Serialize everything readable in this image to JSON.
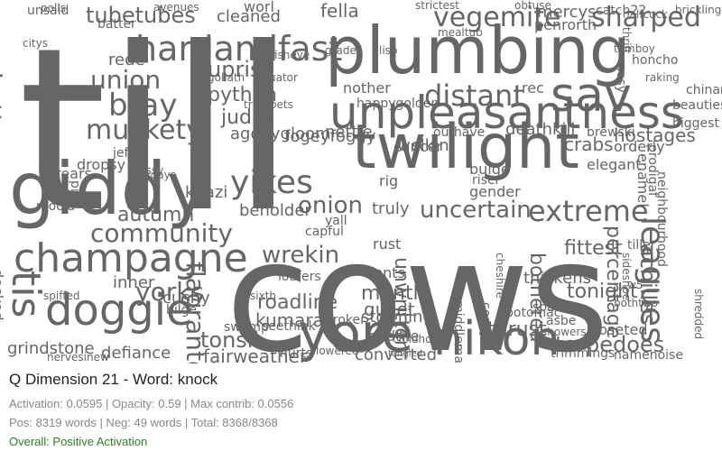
{
  "title": "Q Dimension 21 - Word: knock",
  "stats_line": "Activation: 0.0595 | Opacity: 0.59 | Max contrib: 0.0556",
  "counts_line": "Pos: 8319 words | Neg: 49 words | Total: 8368/8368",
  "status": "Overall: Positive Activation",
  "colors": {
    "word": "#666666",
    "status": "#2e7d2e",
    "text_gray": "#888888"
  },
  "words": [
    "till",
    "cows",
    "plumbing",
    "giddy",
    "twilight",
    "unpleasantness",
    "champagne",
    "yore",
    "nikon",
    "doggie",
    "tis",
    "hardandfast",
    "sav",
    "vegemite",
    "sharped",
    "yikes",
    "community",
    "betterworse",
    "tubetubes",
    "uprise",
    "python",
    "union",
    "muckety",
    "bray",
    "judas",
    "distant",
    "uncertain",
    "extreme",
    "leagues",
    "torpedoes",
    "wrekin",
    "onion",
    "autumn",
    "yorks",
    "tonsil",
    "fairweather",
    "grindstone",
    "defiance",
    "roadline",
    "kumara",
    "flagrante",
    "mantle",
    "gullet",
    "unwritten",
    "thrust",
    "converted",
    "fella",
    "cleaned",
    "worl",
    "deathkill",
    "crabs",
    "hostages",
    "enamel",
    "orderly",
    "fogeyfoggy",
    "welkin",
    "cancer",
    "fittest",
    "tonight",
    "achilles",
    "percentage",
    "bothered",
    "storming",
    "godthe",
    "cushy",
    "inner",
    "spiffed",
    "decked",
    "dropsy",
    "khazi",
    "beholder",
    "agonygloom",
    "rede",
    "mercys",
    "penrorth",
    "catch22",
    "rec",
    "nother",
    "happygolden",
    "nettle",
    "rig",
    "truly",
    "rust",
    "tents",
    "gender",
    "bulge",
    "riser",
    "thickens",
    "sixth",
    "broker",
    "hurts",
    "cosby",
    "potomac",
    "closeted",
    "trimmings",
    "namenoise",
    "spate",
    "asbe",
    "showers",
    "middleman",
    "seethink",
    "yall",
    "capful",
    "loafers",
    "swamp",
    "bilge",
    "jeff",
    "sassy",
    "moola",
    "nervesinew",
    "polls",
    "unsaid",
    "citys",
    "batter",
    "avenues",
    "strictest",
    "mealtub",
    "obtuse",
    "brickling",
    "grade",
    "lisp",
    "halfcock",
    "elegant",
    "prodigal",
    "tiller",
    "w5",
    "bothtwo",
    "shredded",
    "neighbourhood",
    "biggest",
    "chinamans",
    "beauties",
    "honcho",
    "raking",
    "nosy",
    "cheshire",
    "arrears",
    "pick",
    "holidays",
    "sideshoe",
    "tomboy",
    "thrift",
    "lowered",
    "childhood",
    "tangled",
    "brewski",
    "outhave",
    "equator",
    "goliath",
    "trumpets",
    "fisheye"
  ]
}
